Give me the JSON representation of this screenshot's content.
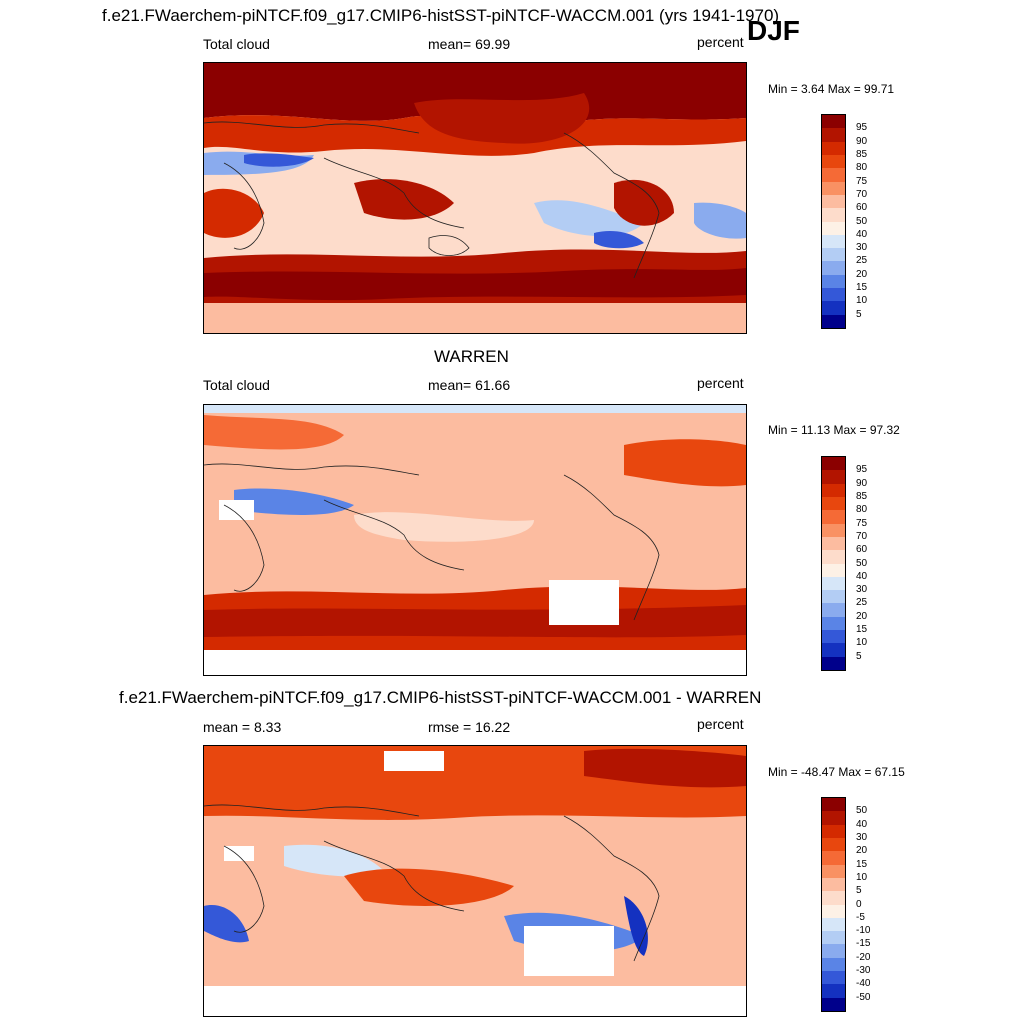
{
  "main_title": "f.e21.FWaerchem-piNTCF.f09_g17.CMIP6-histSST-piNTCF-WACCM.001 (yrs 1941-1970)",
  "season": "DJF",
  "panels": [
    {
      "title": "",
      "left_label": "Total cloud",
      "center_label": "mean=  69.99",
      "right_label": "percent",
      "minmax": "Min =   3.64 Max =  99.71",
      "levels": [
        "95",
        "90",
        "85",
        "80",
        "75",
        "70",
        "60",
        "50",
        "40",
        "30",
        "25",
        "20",
        "15",
        "10",
        "5"
      ],
      "colors": [
        "#8b0000",
        "#b21400",
        "#d42a00",
        "#e8470e",
        "#f56a36",
        "#f99163",
        "#fcbca0",
        "#fddccb",
        "#fdf1e6",
        "#d6e6f8",
        "#b3cdf4",
        "#8aabee",
        "#5a84e6",
        "#3458d8",
        "#1431c0",
        "#00008b"
      ]
    },
    {
      "title": "WARREN",
      "left_label": "Total cloud",
      "center_label": "mean=  61.66",
      "right_label": "percent",
      "minmax": "Min =  11.13 Max =  97.32",
      "levels": [
        "95",
        "90",
        "85",
        "80",
        "75",
        "70",
        "60",
        "50",
        "40",
        "30",
        "25",
        "20",
        "15",
        "10",
        "5"
      ],
      "colors": [
        "#8b0000",
        "#b21400",
        "#d42a00",
        "#e8470e",
        "#f56a36",
        "#f99163",
        "#fcbca0",
        "#fddccb",
        "#fdf1e6",
        "#d6e6f8",
        "#b3cdf4",
        "#8aabee",
        "#5a84e6",
        "#3458d8",
        "#1431c0",
        "#00008b"
      ]
    },
    {
      "title": "f.e21.FWaerchem-piNTCF.f09_g17.CMIP6-histSST-piNTCF-WACCM.001 - WARREN",
      "left_label": "mean =   8.33",
      "center_label": "rmse =  16.22",
      "right_label": "percent",
      "minmax": "Min = -48.47 Max =  67.15",
      "levels": [
        "50",
        "40",
        "30",
        "20",
        "15",
        "10",
        "5",
        "0",
        "-5",
        "-10",
        "-15",
        "-20",
        "-30",
        "-40",
        "-50"
      ],
      "colors": [
        "#8b0000",
        "#b21400",
        "#d42a00",
        "#e8470e",
        "#f56a36",
        "#f99163",
        "#fcbca0",
        "#fddccb",
        "#fdf1e6",
        "#d6e6f8",
        "#b3cdf4",
        "#8aabee",
        "#5a84e6",
        "#3458d8",
        "#1431c0",
        "#00008b"
      ]
    }
  ],
  "chart_data": [
    {
      "type": "heatmap",
      "title": "Total cloud",
      "units": "percent",
      "mean": 69.99,
      "min": 3.64,
      "max": 99.71,
      "contour_levels": [
        5,
        10,
        15,
        20,
        25,
        30,
        40,
        50,
        60,
        70,
        75,
        80,
        85,
        90,
        95
      ],
      "xlim": [
        0,
        360
      ],
      "ylim": [
        -90,
        90
      ]
    },
    {
      "type": "heatmap",
      "title": "Total cloud",
      "units": "percent",
      "mean": 61.66,
      "min": 11.13,
      "max": 97.32,
      "contour_levels": [
        5,
        10,
        15,
        20,
        25,
        30,
        40,
        50,
        60,
        70,
        75,
        80,
        85,
        90,
        95
      ],
      "xlim": [
        0,
        360
      ],
      "ylim": [
        -90,
        90
      ]
    },
    {
      "type": "heatmap",
      "title": "f.e21.FWaerchem-piNTCF.f09_g17.CMIP6-histSST-piNTCF-WACCM.001 - WARREN",
      "units": "percent",
      "mean": 8.33,
      "rmse": 16.22,
      "min": -48.47,
      "max": 67.15,
      "contour_levels": [
        -50,
        -40,
        -30,
        -20,
        -15,
        -10,
        -5,
        0,
        5,
        10,
        15,
        20,
        30,
        40,
        50
      ],
      "xlim": [
        0,
        360
      ],
      "ylim": [
        -90,
        90
      ]
    }
  ]
}
